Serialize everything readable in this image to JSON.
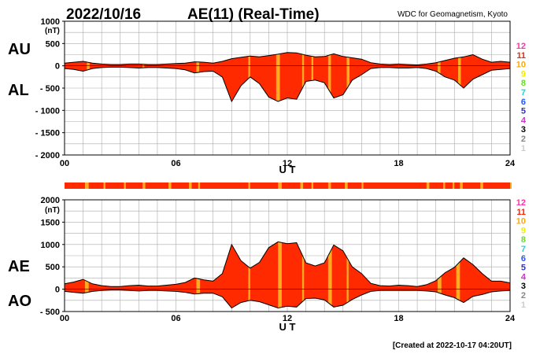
{
  "header": {
    "date": "2022/10/16",
    "title": "AE(11) (Real-Time)",
    "source": "WDC for Geomagnetism, Kyoto"
  },
  "footer": {
    "created": "[Created at 2022-10-17 04:20UT]"
  },
  "colors": {
    "fill": "#ff2a00",
    "highlight": "#ffaa22",
    "grid": "#aaaaaa",
    "station_bar": "#ff2a00",
    "station_levels": {
      "12": "#ff33aa",
      "11": "#ff2200",
      "10": "#ffaa00",
      "9": "#eeee00",
      "8": "#66dd22",
      "7": "#33cccc",
      "6": "#2255ff",
      "5": "#3333bb",
      "4": "#cc33cc",
      "3": "#000000",
      "2": "#888888",
      "1": "#cccccc"
    }
  },
  "legend_levels": [
    "12",
    "11",
    "10",
    "9",
    "8",
    "7",
    "6",
    "5",
    "4",
    "3",
    "2",
    "1"
  ],
  "chart_data": [
    {
      "type": "area",
      "panel": "top",
      "left_labels": [
        "AU",
        "AL"
      ],
      "unit": "(nT)",
      "ylim": [
        -2000,
        1000
      ],
      "yticks": [
        1000,
        500,
        0,
        -500,
        -1000,
        -1500,
        -2000
      ],
      "ytick_labels": [
        "1000",
        "500",
        "0",
        "- 500",
        "- 1000",
        "- 1500",
        "- 2000"
      ],
      "xlim": [
        0,
        24
      ],
      "xticks": [
        0,
        6,
        12,
        18,
        24
      ],
      "xtick_labels": [
        "00",
        "06",
        "12",
        "18",
        "24"
      ],
      "xlabel": "U T",
      "grid": true,
      "series": [
        {
          "key": "AU",
          "x": [
            0,
            0.5,
            1,
            1.5,
            2,
            2.5,
            3,
            3.5,
            4,
            4.5,
            5,
            5.5,
            6,
            6.5,
            7,
            7.5,
            8,
            8.5,
            9,
            9.5,
            10,
            10.5,
            11,
            11.5,
            12,
            12.5,
            13,
            13.5,
            14,
            14.5,
            15,
            15.5,
            16,
            16.5,
            17,
            17.5,
            18,
            18.5,
            19,
            19.5,
            20,
            20.5,
            21,
            21.5,
            22,
            22.5,
            23,
            23.5,
            24
          ],
          "y": [
            60,
            80,
            100,
            60,
            40,
            30,
            30,
            40,
            40,
            30,
            30,
            40,
            50,
            60,
            90,
            80,
            60,
            100,
            160,
            190,
            220,
            200,
            230,
            260,
            300,
            290,
            240,
            200,
            210,
            270,
            210,
            180,
            150,
            70,
            40,
            30,
            40,
            30,
            20,
            40,
            70,
            120,
            170,
            200,
            250,
            150,
            80,
            100,
            80
          ]
        },
        {
          "key": "AL",
          "x": [
            0,
            0.5,
            1,
            1.5,
            2,
            2.5,
            3,
            3.5,
            4,
            4.5,
            5,
            5.5,
            6,
            6.5,
            7,
            7.5,
            8,
            8.5,
            9,
            9.5,
            10,
            10.5,
            11,
            11.5,
            12,
            12.5,
            13,
            13.5,
            14,
            14.5,
            15,
            15.5,
            16,
            16.5,
            17,
            17.5,
            18,
            18.5,
            19,
            19.5,
            20,
            20.5,
            21,
            21.5,
            22,
            22.5,
            23,
            23.5,
            24
          ],
          "y": [
            -60,
            -80,
            -120,
            -60,
            -40,
            -30,
            -30,
            -40,
            -50,
            -40,
            -40,
            -50,
            -60,
            -90,
            -160,
            -130,
            -120,
            -250,
            -800,
            -450,
            -250,
            -400,
            -700,
            -800,
            -720,
            -750,
            -350,
            -320,
            -380,
            -720,
            -650,
            -320,
            -200,
            -60,
            -40,
            -40,
            -50,
            -50,
            -40,
            -60,
            -120,
            -250,
            -320,
            -500,
            -300,
            -200,
            -100,
            -80,
            -60
          ]
        }
      ]
    },
    {
      "type": "area",
      "panel": "bottom",
      "left_labels": [
        "AE",
        "AO"
      ],
      "unit": "(nT)",
      "ylim": [
        -500,
        2000
      ],
      "yticks": [
        2000,
        1500,
        1000,
        500,
        0,
        -500
      ],
      "ytick_labels": [
        "2000",
        "1500",
        "1000",
        "500",
        "0",
        "- 500"
      ],
      "xlim": [
        0,
        24
      ],
      "xticks": [
        0,
        6,
        12,
        18,
        24
      ],
      "xtick_labels": [
        "00",
        "06",
        "12",
        "18",
        "24"
      ],
      "xlabel": "U T",
      "grid": true,
      "series": [
        {
          "key": "AE",
          "x": [
            0,
            0.5,
            1,
            1.5,
            2,
            2.5,
            3,
            3.5,
            4,
            4.5,
            5,
            5.5,
            6,
            6.5,
            7,
            7.5,
            8,
            8.5,
            9,
            9.5,
            10,
            10.5,
            11,
            11.5,
            12,
            12.5,
            13,
            13.5,
            14,
            14.5,
            15,
            15.5,
            16,
            16.5,
            17,
            17.5,
            18,
            18.5,
            19,
            19.5,
            20,
            20.5,
            21,
            21.5,
            22,
            22.5,
            23,
            23.5,
            24
          ],
          "y": [
            120,
            160,
            220,
            120,
            80,
            60,
            60,
            80,
            90,
            70,
            70,
            90,
            110,
            150,
            250,
            210,
            180,
            350,
            1000,
            640,
            470,
            600,
            930,
            1060,
            1020,
            1040,
            590,
            520,
            590,
            990,
            860,
            500,
            350,
            130,
            80,
            70,
            90,
            80,
            60,
            100,
            190,
            370,
            490,
            700,
            550,
            350,
            180,
            180,
            140
          ]
        },
        {
          "key": "AO",
          "x": [
            0,
            0.5,
            1,
            1.5,
            2,
            2.5,
            3,
            3.5,
            4,
            4.5,
            5,
            5.5,
            6,
            6.5,
            7,
            7.5,
            8,
            8.5,
            9,
            9.5,
            10,
            10.5,
            11,
            11.5,
            12,
            12.5,
            13,
            13.5,
            14,
            14.5,
            15,
            15.5,
            16,
            16.5,
            17,
            17.5,
            18,
            18.5,
            19,
            19.5,
            20,
            20.5,
            21,
            21.5,
            22,
            22.5,
            23,
            23.5,
            24
          ],
          "y": [
            -50,
            -70,
            -90,
            -50,
            -30,
            -20,
            -20,
            -30,
            -40,
            -30,
            -30,
            -40,
            -50,
            -70,
            -110,
            -90,
            -90,
            -170,
            -420,
            -300,
            -250,
            -280,
            -350,
            -420,
            -380,
            -400,
            -210,
            -200,
            -240,
            -400,
            -360,
            -230,
            -130,
            -50,
            -30,
            -30,
            -30,
            -30,
            -30,
            -40,
            -60,
            -130,
            -190,
            -300,
            -160,
            -120,
            -60,
            -40,
            -30
          ]
        }
      ],
      "highlight_bands_ut": [
        [
          1.1,
          1.3
        ],
        [
          7.1,
          7.3
        ],
        [
          9.9,
          10.0
        ],
        [
          11.5,
          11.7
        ],
        [
          12.8,
          12.9
        ],
        [
          14.2,
          14.4
        ],
        [
          15.2,
          15.3
        ],
        [
          20.1,
          20.3
        ],
        [
          21.1,
          21.3
        ]
      ]
    }
  ],
  "station_bar": {
    "highlight_bands_ut": [
      [
        1.1,
        1.3
      ],
      [
        2.1,
        2.2
      ],
      [
        3.2,
        3.3
      ],
      [
        4.2,
        4.35
      ],
      [
        5.6,
        5.75
      ],
      [
        6.7,
        6.85
      ],
      [
        7.2,
        7.3
      ],
      [
        9.9,
        10.0
      ],
      [
        11.5,
        11.7
      ],
      [
        12.7,
        12.85
      ],
      [
        13.3,
        13.4
      ],
      [
        14.2,
        14.35
      ],
      [
        15.1,
        15.25
      ],
      [
        16.0,
        16.1
      ],
      [
        19.5,
        19.65
      ],
      [
        20.4,
        20.5
      ],
      [
        20.9,
        21.0
      ],
      [
        21.3,
        21.45
      ],
      [
        22.4,
        22.55
      ],
      [
        24.0,
        24.0
      ]
    ]
  },
  "top_highlight_bands_ut": [
    [
      1.2,
      1.35
    ],
    [
      4.2,
      4.3
    ],
    [
      7.1,
      7.25
    ],
    [
      9.9,
      10.0
    ],
    [
      11.4,
      11.6
    ],
    [
      12.8,
      12.9
    ],
    [
      13.3,
      13.4
    ],
    [
      14.2,
      14.35
    ],
    [
      15.2,
      15.35
    ],
    [
      20.1,
      20.25
    ],
    [
      21.2,
      21.35
    ]
  ]
}
